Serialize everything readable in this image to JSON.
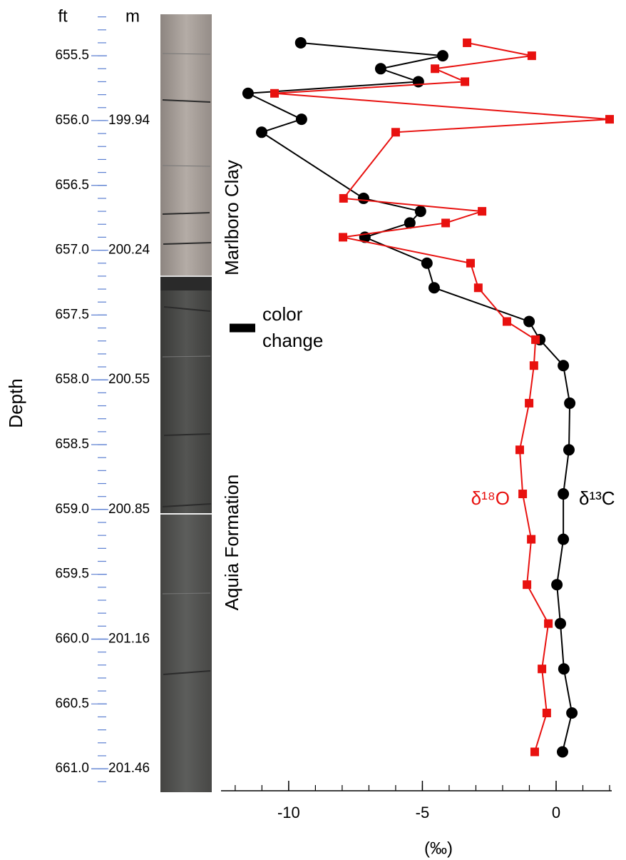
{
  "chart_data": {
    "type": "line",
    "orientation": "vertical-profile",
    "depth_unit_label": "ft",
    "m_unit_label": "m",
    "y_axis_label": "Depth",
    "x_axis_label": "(‰)",
    "annotations": [
      "Marlboro Clay",
      "Aquia Formation"
    ],
    "color_change_label": [
      "color",
      "change"
    ],
    "color_change_depth": 657.6,
    "ylim": [
      655.18,
      661.17
    ],
    "yticks": [
      655.5,
      {
        "value": 656,
        "label": "656.0"
      },
      656.5,
      {
        "value": 657,
        "label": "657.0"
      },
      657.5,
      {
        "value": 658,
        "label": "658.0"
      },
      658.5,
      {
        "value": 659,
        "label": "659.0"
      },
      659.5,
      {
        "value": 660,
        "label": "660.0"
      },
      660.5,
      {
        "value": 661,
        "label": "661.0"
      }
    ],
    "yminor_ticks": [
      655.2,
      655.3,
      655.4,
      655.5,
      655.6,
      655.7,
      655.8,
      655.9,
      656.0,
      656.1,
      656.2,
      656.3,
      656.4,
      656.5,
      656.6,
      656.7,
      656.8,
      656.9,
      657.0,
      657.1,
      657.2,
      657.3,
      657.4,
      657.5,
      657.6,
      657.7,
      657.8,
      657.9,
      658.0,
      658.1,
      658.2,
      658.3,
      658.4,
      658.5,
      658.6,
      658.7,
      658.8,
      658.9,
      659.0,
      659.1,
      659.2,
      659.3,
      659.4,
      659.5,
      659.6,
      659.7,
      659.8,
      659.9,
      660.0,
      660.1,
      660.2,
      660.3,
      660.4,
      660.5,
      660.6,
      660.7,
      660.8,
      660.9,
      661.0,
      661.1
    ],
    "m_ticks": [
      {
        "value": 656,
        "label": "199.94"
      },
      {
        "value": 657,
        "label": "200.24"
      },
      {
        "value": 658,
        "label": "200.55"
      },
      {
        "value": 659,
        "label": "200.85"
      },
      {
        "value": 660,
        "label": "201.16"
      },
      {
        "value": 661,
        "label": "201.46"
      }
    ],
    "xlim": [
      -12.53,
      2.08
    ],
    "xticks": [
      -10,
      -5,
      0
    ],
    "xminor_ticks": [
      -12,
      -11,
      -10,
      -9,
      -8,
      -7,
      -6,
      -5,
      -4,
      -3,
      -2,
      -1,
      0,
      1,
      2
    ],
    "y": [
      655.4,
      655.5,
      655.6,
      655.7,
      655.79,
      655.99,
      656.09,
      656.6,
      656.7,
      656.79,
      656.9,
      657.1,
      657.29,
      657.55,
      657.69,
      657.89,
      658.18,
      658.54,
      658.88,
      659.23,
      659.58,
      659.88,
      660.23,
      660.57,
      660.87
    ],
    "series": [
      {
        "name": "δ¹³C",
        "color": "#000000",
        "marker": "circle",
        "values": [
          -9.55,
          -4.24,
          -6.56,
          -5.15,
          -11.52,
          -9.52,
          -11.01,
          -7.2,
          -5.07,
          -5.47,
          -7.15,
          -4.83,
          -4.56,
          -1.01,
          -0.61,
          0.27,
          0.51,
          0.48,
          0.27,
          0.27,
          0.03,
          0.16,
          0.29,
          0.59,
          0.24
        ]
      },
      {
        "name": "δ¹⁸O",
        "color": "#e8110f",
        "marker": "square",
        "values": [
          -3.33,
          -0.91,
          -4.53,
          -3.41,
          -10.53,
          2.0,
          -6.0,
          -7.95,
          -2.77,
          -4.13,
          -7.97,
          -3.2,
          -2.91,
          -1.84,
          -0.77,
          -0.83,
          -1.01,
          -1.36,
          -1.25,
          -0.93,
          -1.09,
          -0.29,
          -0.53,
          -0.35,
          -0.8
        ]
      }
    ]
  }
}
